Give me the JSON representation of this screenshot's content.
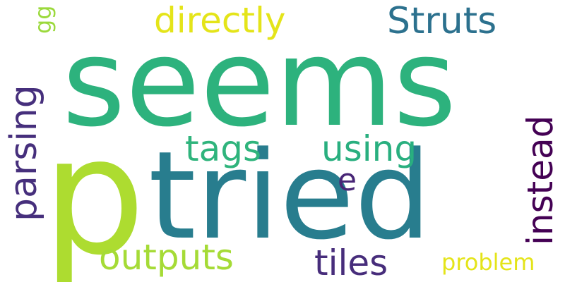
{
  "words": [
    {
      "text": "seems",
      "color": "#2db27d"
    },
    {
      "text": "p",
      "color": "#addc30"
    },
    {
      "text": "tried",
      "color": "#287d8e"
    },
    {
      "text": "Struts",
      "color": "#2c718e"
    },
    {
      "text": "directly",
      "color": "#e4e419"
    },
    {
      "text": "tags",
      "color": "#2fb47c"
    },
    {
      "text": "using",
      "color": "#29af7f"
    },
    {
      "text": "outputs",
      "color": "#a5db36"
    },
    {
      "text": "tiles",
      "color": "#472d7b"
    },
    {
      "text": "problem",
      "color": "#e4e419"
    },
    {
      "text": "e",
      "color": "#482576"
    },
    {
      "text": "parsing",
      "color": "#462f7c"
    },
    {
      "text": "gg",
      "color": "#9bd93c"
    },
    {
      "text": "instead",
      "color": "#440154"
    }
  ]
}
